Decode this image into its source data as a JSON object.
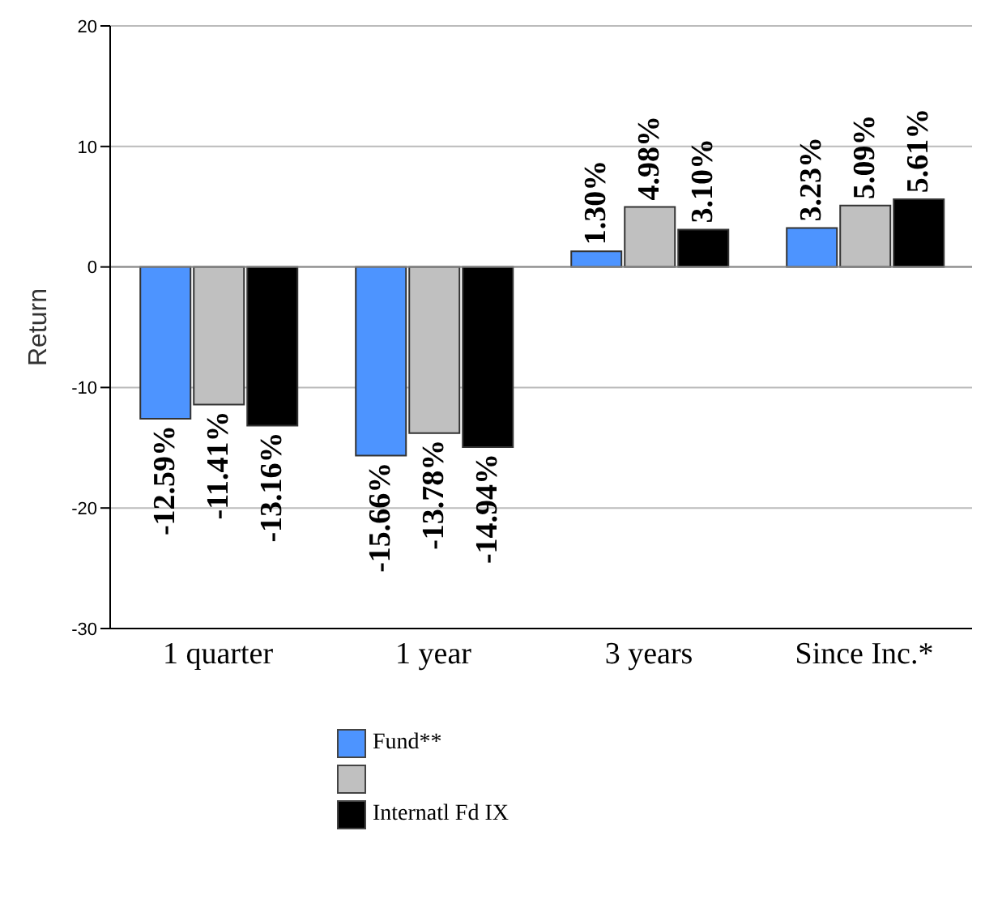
{
  "chart_data": {
    "type": "bar",
    "ylabel": "Return",
    "categories": [
      "1 quarter",
      "1 year",
      "3 years",
      "Since Inc.*"
    ],
    "series": [
      {
        "name": "Fund**",
        "color": "#4d94ff",
        "values": [
          -12.59,
          -15.66,
          1.3,
          3.23
        ]
      },
      {
        "color": "#c0c0c0",
        "values": [
          -11.41,
          -13.78,
          4.98,
          5.09
        ]
      },
      {
        "name": "Internatl Fd IX",
        "color": "#000000",
        "values": [
          -13.16,
          -14.94,
          3.1,
          5.61
        ]
      }
    ],
    "value_labels": [
      [
        "-12.59%",
        "-15.66%",
        "1.30%",
        "3.23%"
      ],
      [
        "-11.41%",
        "-13.78%",
        "4.98%",
        "5.09%"
      ],
      [
        "-13.16%",
        "-14.94%",
        "3.10%",
        "5.61%"
      ]
    ],
    "ylim": [
      -30,
      20
    ],
    "yticks": [
      -30,
      -20,
      -10,
      0,
      10,
      20
    ],
    "grid": "y",
    "legend": "bottom"
  }
}
